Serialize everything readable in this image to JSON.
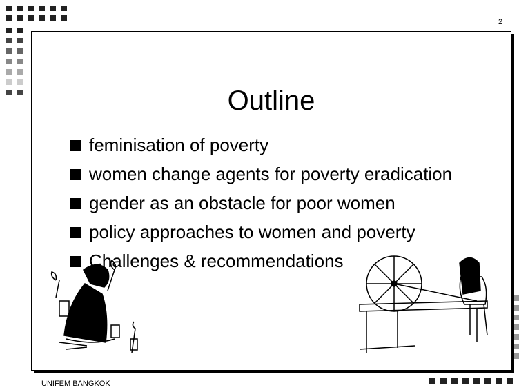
{
  "slide_number": "2",
  "title": "Outline",
  "bullets": [
    "feminisation of poverty",
    "women change agents for poverty eradication",
    "gender as an obstacle for poor women",
    "policy approaches to women and poverty",
    "Challenges & recommendations"
  ],
  "footer": "UNIFEM BANGKOK"
}
